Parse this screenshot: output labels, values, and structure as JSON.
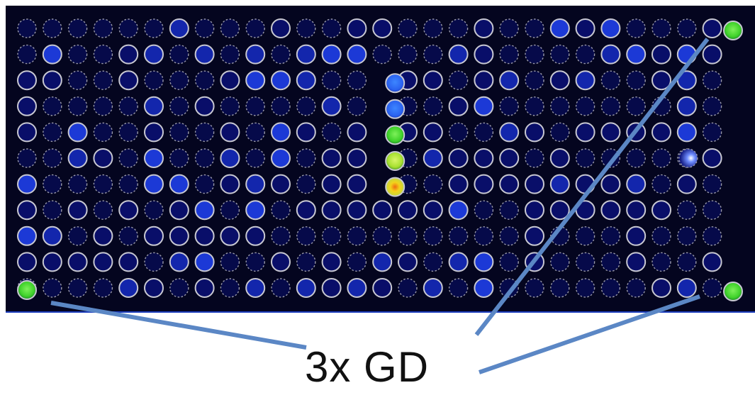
{
  "caption": "3x GD",
  "colors": {
    "array_background": "#04051f",
    "well_fill": "#0a0f6e",
    "well_fill_bright": "#1428b4",
    "well_fill_strong": "#1e3ce0",
    "ring_solid": "#c8c8d2",
    "ring_dashed": "#9a9aaa",
    "pointer_line": "#5b87c5",
    "spot_green": "#3fd22a",
    "spot_lime": "#a7e02f",
    "spot_yellow": "#f3d21a",
    "spot_blue": "#2a62f0"
  },
  "array": {
    "rows": 11,
    "columns": 28,
    "ring_styles": [
      "solid",
      "dashed"
    ],
    "signal_spots": [
      {
        "row": 2,
        "column": 14,
        "level": "blue"
      },
      {
        "row": 3,
        "column": 14,
        "level": "blue"
      },
      {
        "row": 4,
        "column": 14,
        "level": "green"
      },
      {
        "row": 5,
        "column": 14,
        "level": "lime"
      },
      {
        "row": 6,
        "column": 14,
        "level": "yellow"
      }
    ],
    "reference_spots": [
      {
        "position": "top-right",
        "level": "green"
      },
      {
        "position": "bottom-left",
        "level": "green"
      },
      {
        "position": "bottom-right",
        "level": "green"
      }
    ]
  }
}
